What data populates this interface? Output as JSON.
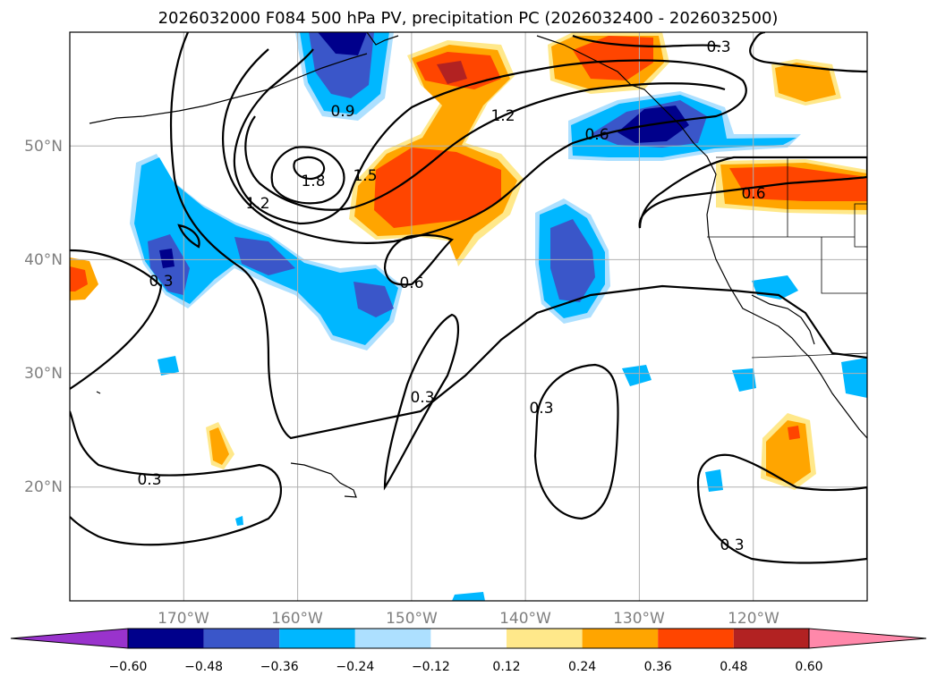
{
  "title": "2026032000 F084 500 hPa PV, precipitation PC (2026032400 - 2026032500)",
  "map": {
    "lat_labels": [
      "50°N",
      "40°N",
      "30°N",
      "20°N"
    ],
    "lon_labels": [
      "170°W",
      "160°W",
      "150°W",
      "140°W",
      "130°W",
      "120°W"
    ],
    "extent": {
      "lon_min": -180,
      "lon_max": -110,
      "lat_min": 10,
      "lat_max": 60
    },
    "projection": "PlateCarree"
  },
  "pv_contour_labels": [
    "0.9",
    "1.2",
    "1.8",
    "1.5",
    "1.2",
    "0.6",
    "0.6",
    "0.3",
    "0.3",
    "0.3",
    "0.6",
    "0.3",
    "0.3",
    "0.3"
  ],
  "colorbar": {
    "ticks": [
      "−0.60",
      "−0.48",
      "−0.36",
      "−0.24",
      "−0.12",
      "0.12",
      "0.24",
      "0.36",
      "0.48",
      "0.60"
    ],
    "colors": [
      "#9933cc",
      "#00008b",
      "#3a56c9",
      "#00b7ff",
      "#ade0ff",
      "#ffffff",
      "#ffe88a",
      "#ffa500",
      "#ff4500",
      "#b22222",
      "#ff88aa"
    ]
  },
  "chart_data": {
    "type": "heatmap",
    "title": "2026032000 F084 500 hPa PV, precipitation PC (2026032400 - 2026032500)",
    "contour_levels": [
      0.3,
      0.6,
      0.9,
      1.2,
      1.5,
      1.8
    ],
    "fill_levels": [
      -0.6,
      -0.48,
      -0.36,
      -0.24,
      -0.12,
      0.12,
      0.24,
      0.36,
      0.48,
      0.6
    ],
    "xlim": [
      -180,
      -110
    ],
    "ylim": [
      10,
      60
    ],
    "xticks": [
      -170,
      -160,
      -150,
      -140,
      -130,
      -120
    ],
    "yticks": [
      20,
      30,
      40,
      50
    ],
    "grid": true
  }
}
